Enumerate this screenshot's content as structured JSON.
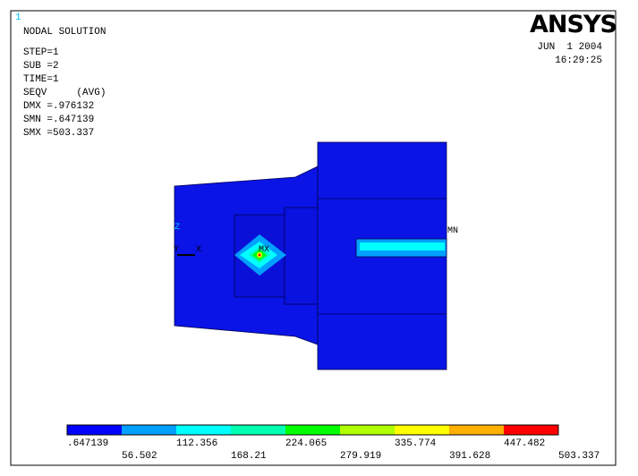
{
  "header": {
    "window_number": "1",
    "title": "NODAL SOLUTION",
    "lines": [
      "STEP=1",
      "SUB =2",
      "TIME=1",
      "SEQV     (AVG)",
      "DMX =.976132",
      "SMN =.647139",
      "SMX =503.337"
    ],
    "logo": "ANSYS",
    "date": "JUN  1 2004",
    "time": "16:29:25"
  },
  "model": {
    "max_label": "MX",
    "min_label": "MN",
    "axes": [
      "Z",
      "Y",
      "X"
    ]
  },
  "legend": {
    "colors": [
      "#0000ff",
      "#00a0ff",
      "#00ffff",
      "#00ffb0",
      "#00ff00",
      "#b0ff00",
      "#ffff00",
      "#ffb000",
      "#ff0000"
    ],
    "labels": [
      ".647139",
      "56.502",
      "112.356",
      "168.21",
      "224.065",
      "279.919",
      "335.774",
      "391.628",
      "447.482",
      "503.337"
    ]
  }
}
